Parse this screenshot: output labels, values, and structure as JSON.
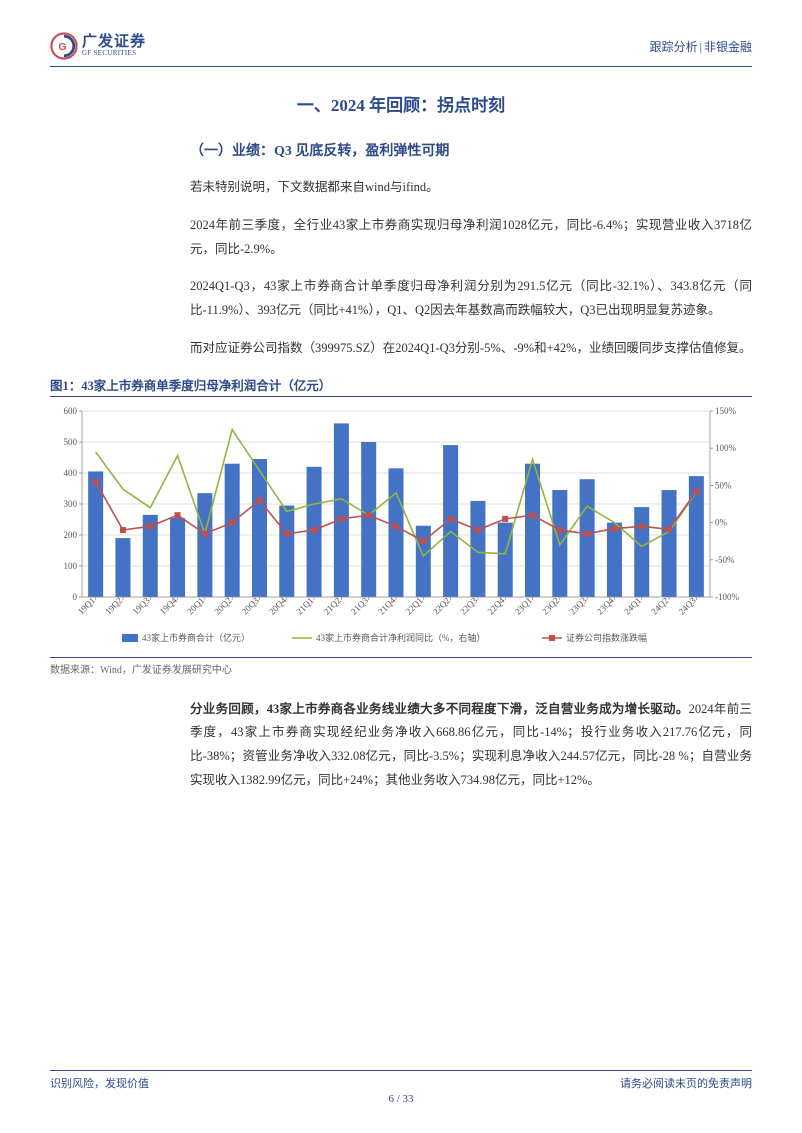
{
  "header": {
    "logo_cn": "广发证券",
    "logo_en": "GF SECURITIES",
    "doc_type": "跟踪分析",
    "sector": "非银金融"
  },
  "section_title": "一、2024 年回顾：拐点时刻",
  "subsection_title": "（一）业绩：Q3 见底反转，盈利弹性可期",
  "paragraphs": {
    "p1": "若未特别说明，下文数据都来自wind与ifind。",
    "p2": "2024年前三季度，全行业43家上市券商实现归母净利润1028亿元，同比-6.4%；实现营业收入3718亿元，同比-2.9%。",
    "p3": "2024Q1-Q3，43家上市券商合计单季度归母净利润分别为291.5亿元（同比-32.1%）、343.8亿元（同比-11.9%）、393亿元（同比+41%），Q1、Q2因去年基数高而跌幅较大，Q3已出现明显复苏迹象。",
    "p4": "而对应证券公司指数（399975.SZ）在2024Q1-Q3分别-5%、-9%和+42%，业绩回暖同步支撑估值修复。",
    "p5_bold": "分业务回顾，43家上市券商各业务线业绩大多不同程度下滑，泛自营业务成为增长驱动。",
    "p5_rest": "2024年前三季度，43家上市券商实现经纪业务净收入668.86亿元，同比-14%；投行业务收入217.76亿元，同比-38%；资管业务净收入332.08亿元，同比-3.5%；实现利息净收入244.57亿元，同比-28 %；自营业务实现收入1382.99亿元，同比+24%；其他业务收入734.98亿元，同比+12%。"
  },
  "figure": {
    "title": "图1：43家上市券商单季度归母净利润合计（亿元）",
    "source": "数据来源：Wind，广发证券发展研究中心"
  },
  "chart": {
    "categories": [
      "19Q1",
      "19Q2",
      "19Q3",
      "19Q4",
      "20Q1",
      "20Q2",
      "20Q3",
      "20Q4",
      "21Q1",
      "21Q2",
      "21Q3",
      "21Q4",
      "22Q1",
      "22Q2",
      "22Q3",
      "22Q4",
      "23Q1",
      "23Q2",
      "23Q3",
      "23Q4",
      "24Q1",
      "24Q2",
      "24Q3"
    ],
    "bar_values": [
      405,
      190,
      265,
      255,
      335,
      430,
      445,
      295,
      420,
      560,
      500,
      415,
      230,
      490,
      310,
      240,
      430,
      345,
      380,
      240,
      290,
      345,
      390
    ],
    "yoy_values": [
      95,
      45,
      20,
      90,
      -15,
      125,
      70,
      15,
      25,
      32,
      10,
      40,
      -45,
      -12,
      -40,
      -42,
      85,
      -30,
      22,
      0,
      -32,
      -12,
      41
    ],
    "index_values": [
      55,
      -10,
      -5,
      10,
      -15,
      0,
      30,
      -15,
      -10,
      5,
      10,
      -5,
      -25,
      5,
      -10,
      5,
      10,
      -10,
      -15,
      -8,
      -5,
      -9,
      42
    ],
    "y_left": {
      "min": 0,
      "max": 600,
      "step": 100
    },
    "y_right": {
      "min": -100,
      "max": 150,
      "step": 50
    },
    "colors": {
      "bar": "#4472c4",
      "line_yoy": "#91b53d",
      "line_index": "#c0504d",
      "marker_index": "#c0504d",
      "grid": "#d9d9d9",
      "axis": "#8a8a8a",
      "tick_text": "#595959",
      "legend_text": "#595959"
    },
    "legend": {
      "bar": "43家上市券商合计（亿元）",
      "yoy": "43家上市券商合计净利润同比（%，右轴）",
      "index": "证券公司指数涨跌幅"
    },
    "fontsize_tick": 9,
    "fontsize_legend": 9,
    "bar_width_ratio": 0.55
  },
  "footer": {
    "left": "识别风险，发现价值",
    "right": "请务必阅读末页的免责声明",
    "page_current": "6",
    "page_total": "33"
  }
}
